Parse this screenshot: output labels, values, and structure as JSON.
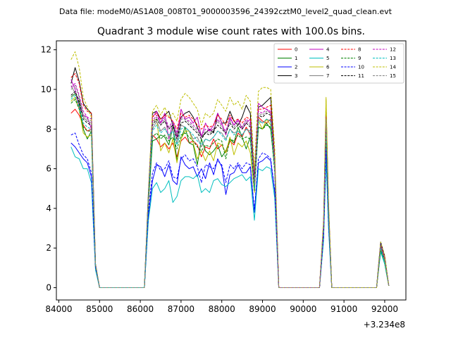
{
  "suptitle": "Data file: modeM0/AS1A08_008T01_9000003596_24392cztM0_level2_quad_clean.evt",
  "chart_data": {
    "type": "line",
    "title": "Quadrant 3 module wise count rates with 100.0s bins.",
    "xlabel": "",
    "ylabel": "",
    "x_offset_label": "+3.234e8",
    "xlim": [
      83940,
      92520
    ],
    "ylim": [
      -0.62,
      12.45
    ],
    "xticks": [
      84000,
      85000,
      86000,
      87000,
      88000,
      89000,
      90000,
      91000,
      92000
    ],
    "yticks": [
      0,
      2,
      4,
      6,
      8,
      10,
      12
    ],
    "legend_position": "top-right",
    "x": [
      84300,
      84400,
      84500,
      84600,
      84700,
      84800,
      84900,
      85000,
      86100,
      86200,
      86300,
      86400,
      86500,
      86600,
      86700,
      86800,
      86900,
      87000,
      87100,
      87200,
      87300,
      87400,
      87500,
      87600,
      87700,
      87800,
      87900,
      88000,
      88100,
      88200,
      88300,
      88400,
      88500,
      88600,
      88700,
      88800,
      88900,
      89000,
      89100,
      89200,
      89300,
      89400,
      89500,
      90400,
      90500,
      90560,
      90620,
      90700,
      90800,
      91800,
      91900,
      92000,
      92100
    ],
    "series": [
      {
        "name": "0",
        "color": "#ff0000",
        "dash": false,
        "values": [
          8.8,
          9.0,
          8.7,
          8.2,
          7.9,
          8.0,
          1.1,
          0,
          0,
          4.2,
          7.7,
          7.5,
          7.1,
          7.3,
          7.0,
          7.3,
          6.6,
          7.4,
          7.6,
          7.3,
          7.4,
          7.2,
          6.6,
          7.1,
          7.0,
          7.5,
          7.0,
          7.2,
          6.8,
          7.4,
          7.2,
          7.8,
          7.6,
          8.1,
          7.7,
          5.0,
          8.6,
          8.4,
          8.3,
          8.5,
          6.0,
          0,
          0,
          0,
          3.0,
          9.0,
          4.0,
          0,
          0,
          0,
          2.2,
          1.4,
          0.1
        ]
      },
      {
        "name": "1",
        "color": "#008000",
        "dash": false,
        "values": [
          9.6,
          9.8,
          9.3,
          8.0,
          7.5,
          7.9,
          1.1,
          0,
          0,
          4.3,
          7.4,
          7.5,
          7.7,
          7.6,
          7.2,
          8.1,
          6.4,
          7.5,
          8.1,
          7.3,
          7.2,
          6.2,
          7.5,
          6.9,
          6.7,
          6.9,
          7.2,
          6.6,
          6.9,
          7.5,
          7.3,
          8.1,
          7.6,
          7.0,
          7.6,
          5.0,
          8.1,
          8.0,
          8.3,
          8.0,
          6.0,
          0,
          0,
          0,
          3.0,
          7.5,
          3.8,
          0,
          0,
          0,
          1.9,
          1.2,
          0.1
        ]
      },
      {
        "name": "2",
        "color": "#0000ff",
        "dash": false,
        "values": [
          7.3,
          7.1,
          6.8,
          6.5,
          6.3,
          5.6,
          1.0,
          0,
          0,
          3.6,
          5.4,
          6.2,
          6.1,
          5.6,
          6.2,
          5.4,
          5.2,
          6.6,
          6.2,
          6.0,
          6.1,
          5.6,
          6.0,
          5.5,
          6.3,
          5.7,
          6.5,
          6.1,
          4.7,
          5.7,
          5.8,
          6.2,
          5.8,
          5.8,
          6.1,
          3.8,
          6.3,
          6.4,
          6.6,
          6.4,
          4.8,
          0,
          0,
          0,
          2.5,
          6.8,
          3.2,
          0,
          0,
          0,
          2.3,
          1.5,
          0.1
        ]
      },
      {
        "name": "3",
        "color": "#000000",
        "dash": false,
        "values": [
          10.3,
          11.1,
          10.4,
          9.3,
          9.0,
          8.8,
          1.2,
          0,
          0,
          4.8,
          8.8,
          8.9,
          8.5,
          8.7,
          8.9,
          8.2,
          7.6,
          8.6,
          8.8,
          8.9,
          8.6,
          8.1,
          7.6,
          7.8,
          8.0,
          7.8,
          8.8,
          8.3,
          8.3,
          8.9,
          8.4,
          8.2,
          8.6,
          9.2,
          8.8,
          5.5,
          9.1,
          9.2,
          9.4,
          9.6,
          6.5,
          0,
          0,
          0,
          3.3,
          9.2,
          4.2,
          0,
          0,
          0,
          2.3,
          1.6,
          0.1
        ]
      },
      {
        "name": "4",
        "color": "#bf00bf",
        "dash": false,
        "values": [
          10.5,
          10.0,
          9.1,
          8.7,
          8.6,
          8.0,
          1.1,
          0,
          0,
          4.4,
          8.6,
          8.9,
          8.3,
          8.8,
          7.5,
          8.3,
          7.6,
          9.0,
          8.5,
          8.6,
          8.3,
          8.6,
          7.6,
          8.3,
          7.9,
          8.2,
          8.8,
          8.3,
          7.7,
          8.6,
          8.2,
          8.5,
          8.0,
          8.3,
          8.5,
          5.2,
          9.3,
          9.1,
          9.0,
          8.8,
          6.2,
          0,
          0,
          0,
          3.2,
          8.8,
          4.1,
          0,
          0,
          0,
          2.1,
          1.5,
          0.1
        ]
      },
      {
        "name": "5",
        "color": "#00bfbf",
        "dash": false,
        "values": [
          7.1,
          6.6,
          6.5,
          6.0,
          6.0,
          5.3,
          0.9,
          0,
          0,
          3.4,
          5.0,
          5.3,
          4.8,
          5.0,
          5.4,
          4.3,
          4.6,
          5.4,
          5.6,
          5.6,
          5.5,
          5.7,
          4.8,
          5.0,
          4.8,
          5.4,
          5.5,
          5.2,
          5.1,
          5.3,
          5.5,
          5.6,
          5.7,
          5.4,
          5.6,
          3.4,
          6.0,
          5.9,
          6.1,
          6.0,
          4.5,
          0,
          0,
          0,
          2.4,
          6.5,
          3.0,
          0,
          0,
          0,
          1.8,
          1.2,
          0.1
        ]
      },
      {
        "name": "6",
        "color": "#bfbf00",
        "dash": false,
        "values": [
          9.4,
          9.6,
          9.0,
          7.8,
          7.6,
          7.7,
          1.1,
          0,
          0,
          4.5,
          8.4,
          8.5,
          6.9,
          7.3,
          6.8,
          7.5,
          6.3,
          7.5,
          7.9,
          7.9,
          7.3,
          6.5,
          6.9,
          6.4,
          6.9,
          6.4,
          7.3,
          7.2,
          6.8,
          7.6,
          6.7,
          7.3,
          7.1,
          7.4,
          6.8,
          4.8,
          8.4,
          8.0,
          8.5,
          8.2,
          6.0,
          0,
          0,
          0,
          3.1,
          9.6,
          4.0,
          0,
          0,
          0,
          2.0,
          1.3,
          0.1
        ]
      },
      {
        "name": "7",
        "color": "#808080",
        "dash": false,
        "values": [
          10.2,
          9.8,
          9.5,
          8.6,
          8.4,
          8.3,
          1.1,
          0,
          0,
          4.6,
          8.0,
          8.4,
          7.9,
          8.1,
          7.6,
          8.0,
          7.3,
          8.2,
          8.1,
          7.9,
          7.5,
          7.6,
          7.1,
          7.5,
          7.4,
          7.6,
          7.9,
          7.8,
          7.5,
          8.0,
          7.8,
          7.9,
          7.7,
          8.0,
          7.9,
          5.1,
          8.5,
          8.3,
          8.5,
          8.4,
          6.1,
          0,
          0,
          0,
          3.0,
          8.0,
          3.9,
          0,
          0,
          0,
          2.0,
          1.4,
          0.1
        ]
      },
      {
        "name": "8",
        "color": "#ff0000",
        "dash": true,
        "values": [
          10.6,
          10.8,
          10.3,
          9.2,
          8.9,
          8.8,
          1.2,
          0,
          0,
          4.8,
          8.6,
          8.8,
          8.5,
          8.7,
          8.6,
          8.4,
          8.0,
          8.8,
          8.6,
          8.7,
          8.5,
          8.2,
          8.0,
          8.2,
          8.1,
          8.2,
          8.7,
          8.5,
          8.2,
          8.7,
          8.4,
          8.5,
          8.3,
          8.6,
          8.5,
          5.4,
          9.0,
          9.0,
          9.1,
          9.2,
          6.4,
          0,
          0,
          0,
          3.2,
          8.6,
          4.1,
          0,
          0,
          0,
          2.2,
          1.5,
          0.1
        ]
      },
      {
        "name": "9",
        "color": "#008000",
        "dash": true,
        "values": [
          9.3,
          9.5,
          9.0,
          8.1,
          7.9,
          7.9,
          1.1,
          0,
          0,
          4.4,
          7.6,
          7.8,
          7.5,
          7.7,
          7.4,
          7.6,
          7.0,
          7.7,
          7.8,
          7.6,
          7.4,
          7.1,
          6.9,
          7.2,
          7.1,
          7.3,
          7.5,
          7.4,
          6.5,
          7.5,
          7.4,
          7.7,
          7.5,
          7.6,
          7.5,
          4.9,
          8.1,
          8.0,
          8.2,
          8.1,
          5.8,
          0,
          0,
          0,
          2.9,
          7.8,
          3.7,
          0,
          0,
          0,
          1.9,
          1.3,
          0.1
        ]
      },
      {
        "name": "10",
        "color": "#0000ff",
        "dash": true,
        "values": [
          7.7,
          7.8,
          7.2,
          6.7,
          6.5,
          5.8,
          1.0,
          0,
          0,
          3.8,
          5.8,
          6.3,
          5.9,
          6.0,
          6.4,
          5.6,
          5.5,
          6.5,
          6.7,
          6.4,
          6.5,
          6.1,
          5.3,
          6.2,
          6.1,
          6.0,
          6.4,
          6.2,
          5.3,
          6.2,
          6.0,
          6.3,
          6.0,
          6.3,
          6.2,
          3.9,
          6.5,
          6.8,
          6.7,
          6.5,
          4.9,
          0,
          0,
          0,
          2.6,
          7.0,
          3.3,
          0,
          0,
          0,
          2.2,
          1.4,
          0.1
        ]
      },
      {
        "name": "11",
        "color": "#000000",
        "dash": true,
        "values": [
          9.7,
          9.9,
          9.4,
          8.5,
          8.3,
          8.2,
          1.1,
          0,
          0,
          4.6,
          8.2,
          8.5,
          8.2,
          8.4,
          8.0,
          8.2,
          7.5,
          8.3,
          8.4,
          8.2,
          8.0,
          7.8,
          7.5,
          7.8,
          7.7,
          7.9,
          8.2,
          8.0,
          7.8,
          8.3,
          8.0,
          8.2,
          8.0,
          8.3,
          8.1,
          5.2,
          8.7,
          8.6,
          8.8,
          8.7,
          6.2,
          0,
          0,
          0,
          3.1,
          8.4,
          4.0,
          0,
          0,
          0,
          2.1,
          1.4,
          0.1
        ]
      },
      {
        "name": "12",
        "color": "#bf00bf",
        "dash": true,
        "values": [
          10.1,
          10.3,
          9.7,
          8.9,
          8.6,
          8.5,
          1.2,
          0,
          0,
          4.7,
          8.4,
          8.7,
          8.3,
          8.6,
          8.1,
          8.4,
          7.8,
          8.6,
          8.5,
          8.4,
          8.2,
          8.0,
          7.7,
          8.0,
          7.9,
          8.0,
          8.5,
          8.2,
          7.9,
          8.5,
          8.2,
          8.4,
          8.1,
          8.5,
          8.3,
          5.3,
          8.9,
          8.8,
          9.0,
          8.9,
          6.3,
          0,
          0,
          0,
          3.2,
          8.7,
          4.1,
          0,
          0,
          0,
          2.1,
          1.5,
          0.1
        ]
      },
      {
        "name": "13",
        "color": "#00bfbf",
        "dash": true,
        "values": [
          9.5,
          9.7,
          9.1,
          8.3,
          8.1,
          8.0,
          1.1,
          0,
          0,
          4.5,
          7.9,
          8.2,
          7.8,
          8.0,
          7.7,
          7.9,
          7.2,
          8.0,
          8.1,
          7.9,
          7.7,
          7.4,
          7.2,
          7.5,
          7.4,
          7.6,
          7.9,
          7.7,
          7.4,
          8.0,
          7.7,
          7.9,
          7.7,
          8.0,
          7.8,
          5.0,
          8.4,
          8.3,
          8.5,
          8.4,
          6.0,
          0,
          0,
          0,
          3.0,
          8.1,
          3.8,
          0,
          0,
          0,
          2.0,
          1.3,
          0.1
        ]
      },
      {
        "name": "14",
        "color": "#bfbf00",
        "dash": true,
        "values": [
          11.5,
          11.9,
          11.1,
          9.6,
          9.1,
          8.6,
          1.2,
          0,
          0,
          4.9,
          8.9,
          9.2,
          8.7,
          9.1,
          8.6,
          8.8,
          8.4,
          9.5,
          9.8,
          9.6,
          9.3,
          9.0,
          8.2,
          8.8,
          8.6,
          8.8,
          9.5,
          9.2,
          8.9,
          9.6,
          9.2,
          9.4,
          9.0,
          9.7,
          9.4,
          6.0,
          9.9,
          10.1,
          10.1,
          10.0,
          7.0,
          0,
          0,
          0,
          3.5,
          9.5,
          4.4,
          0,
          0,
          0,
          2.3,
          1.6,
          0.1
        ]
      },
      {
        "name": "15",
        "color": "#808080",
        "dash": true,
        "values": [
          10.0,
          10.2,
          9.6,
          8.7,
          8.5,
          8.4,
          1.2,
          0,
          0,
          4.7,
          8.3,
          8.6,
          8.2,
          8.5,
          8.0,
          8.3,
          7.7,
          8.5,
          8.5,
          8.3,
          8.1,
          7.9,
          7.6,
          7.9,
          7.8,
          8.0,
          8.4,
          8.1,
          7.8,
          8.4,
          8.1,
          8.3,
          8.1,
          8.4,
          8.2,
          5.2,
          8.8,
          8.7,
          8.9,
          8.8,
          6.2,
          0,
          0,
          0,
          3.1,
          8.5,
          4.0,
          0,
          0,
          0,
          2.1,
          1.4,
          0.1
        ]
      }
    ]
  }
}
